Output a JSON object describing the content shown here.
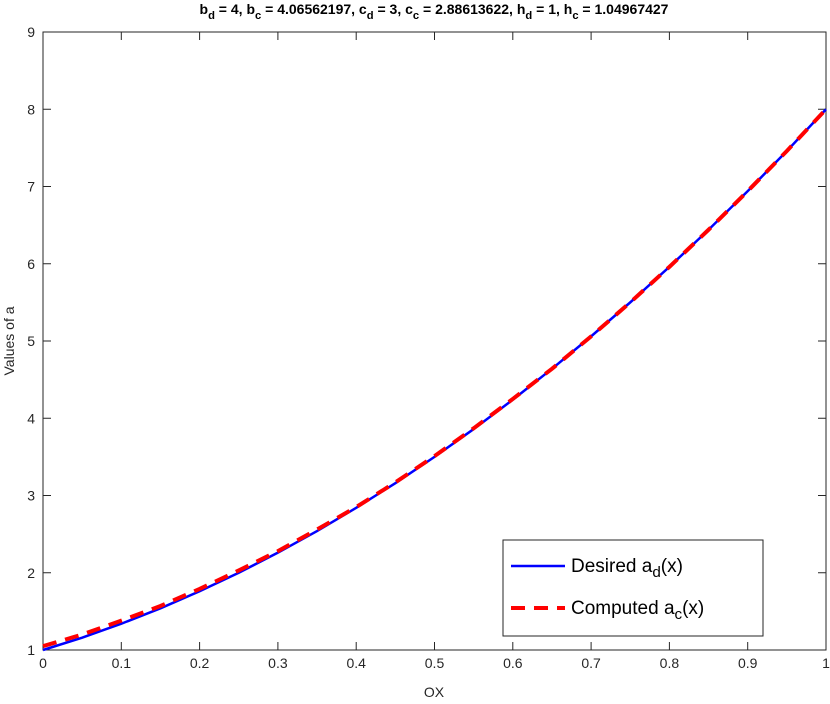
{
  "chart_data": {
    "type": "line",
    "title": [
      {
        "text": "b"
      },
      {
        "sub": "d"
      },
      {
        "text": " = 4,  b"
      },
      {
        "sub": "c"
      },
      {
        "text": " = 4.06562197,  c"
      },
      {
        "sub": "d"
      },
      {
        "text": " = 3,  c"
      },
      {
        "sub": "c"
      },
      {
        "text": " = 2.88613622,  h"
      },
      {
        "sub": "d"
      },
      {
        "text": " = 1,  h"
      },
      {
        "sub": "c"
      },
      {
        "text": " = 1.04967427"
      }
    ],
    "x_label": "OX",
    "y_label": "Values of a",
    "x": [
      0,
      0.05,
      0.1,
      0.15,
      0.2,
      0.25,
      0.3,
      0.35,
      0.4,
      0.45,
      0.5,
      0.55,
      0.6,
      0.65,
      0.7,
      0.75,
      0.8,
      0.85,
      0.9,
      0.95,
      1
    ],
    "series": [
      {
        "name": [
          {
            "text": "Desired a"
          },
          {
            "sub": "d"
          },
          {
            "text": "(x)"
          }
        ],
        "color": "#0000ff",
        "dash": false,
        "values": [
          1,
          1.16,
          1.34,
          1.54,
          1.76,
          2.0,
          2.26,
          2.54,
          2.84,
          3.16,
          3.5,
          3.86,
          4.24,
          4.64,
          5.06,
          5.5,
          5.96,
          6.44,
          6.94,
          7.46,
          8
        ]
      },
      {
        "name": [
          {
            "text": "Computed a"
          },
          {
            "sub": "c"
          },
          {
            "text": "(x)"
          }
        ],
        "color": "#ff0000",
        "dash": true,
        "values": [
          1.05,
          1.2,
          1.38,
          1.57,
          1.79,
          2.03,
          2.28,
          2.56,
          2.85,
          3.17,
          3.51,
          3.87,
          4.25,
          4.64,
          5.06,
          5.5,
          5.96,
          6.44,
          6.94,
          7.46,
          8.0
        ]
      }
    ],
    "xlim": [
      0,
      1
    ],
    "ylim": [
      1,
      9
    ],
    "xticks": [
      0,
      0.1,
      0.2,
      0.3,
      0.4,
      0.5,
      0.6,
      0.7,
      0.8,
      0.9,
      1
    ],
    "yticks": [
      1,
      2,
      3,
      4,
      5,
      6,
      7,
      8,
      9
    ],
    "grid": false,
    "legend": "southeast"
  }
}
